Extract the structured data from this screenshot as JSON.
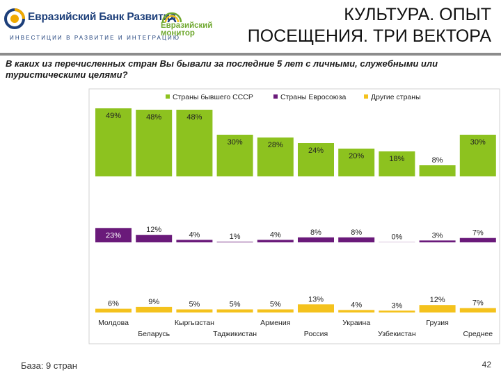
{
  "header": {
    "bank_name": "Евразийский Банк Развития",
    "bank_tagline": "ИНВЕСТИЦИИ В РАЗВИТИЕ И ИНТЕГРАЦИЮ",
    "monitor_line1": "Евразийский",
    "monitor_line2": "монитор",
    "title_line1": "КУЛЬТУРА. ОПЫТ",
    "title_line2": "ПОСЕЩЕНИЯ. ТРИ ВЕКТОРА"
  },
  "question": "В каких из перечисленных стран Вы бывали за последние 5 лет с личными, служебными или туристическими целями?",
  "footer": {
    "base": "База: 9 стран",
    "page_number": "42"
  },
  "colors": {
    "ussr": "#8dc21f",
    "eu": "#6a1a7a",
    "other": "#f4c21d",
    "accent": "#1d3f7a"
  },
  "chart_data": {
    "type": "bar",
    "title": "",
    "xlabel": "",
    "ylabel": "",
    "ylim": [
      0,
      50
    ],
    "unit": "%",
    "categories": [
      "Молдова",
      "Беларусь",
      "Кыргызстан",
      "Таджикистан",
      "Армения",
      "Россия",
      "Украина",
      "Узбекистан",
      "Грузия",
      "Среднее"
    ],
    "series": [
      {
        "name": "Страны бывшего СССР",
        "color": "#8dc21f",
        "values": [
          49,
          48,
          48,
          30,
          28,
          24,
          20,
          18,
          8,
          30
        ]
      },
      {
        "name": "Страны Евросоюза",
        "color": "#6a1a7a",
        "values": [
          23,
          12,
          4,
          1,
          4,
          8,
          8,
          0,
          3,
          7
        ]
      },
      {
        "name": "Другие страны",
        "color": "#f4c21d",
        "values": [
          6,
          9,
          5,
          5,
          5,
          13,
          4,
          3,
          12,
          7
        ]
      }
    ]
  }
}
